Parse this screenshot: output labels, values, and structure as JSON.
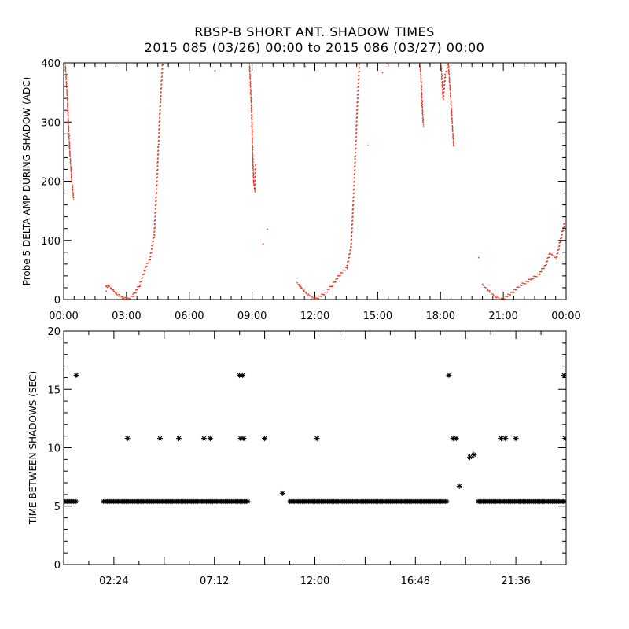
{
  "title": "RBSP-B SHORT ANT. SHADOW TIMES",
  "subtitle": "2015 085 (03/26) 00:00 to 2015 086 (03/27) 00:00",
  "colors": {
    "top_series": "#e8341c",
    "bottom_series": "#000000",
    "axes": "#000000"
  },
  "chart_data": [
    {
      "type": "scatter",
      "ylabel": "Probe 5 DELTA AMP DURING SHADOW (ADC)",
      "xlabel": "",
      "xlim": [
        0,
        24
      ],
      "ylim": [
        0,
        400
      ],
      "x_ticks": [
        "00:00",
        "03:00",
        "06:00",
        "09:00",
        "12:00",
        "15:00",
        "18:00",
        "21:00",
        "00:00"
      ],
      "y_ticks": [
        "0",
        "100",
        "200",
        "300",
        "400"
      ],
      "series": [
        {
          "color": "#e8341c",
          "marker": "dot",
          "segments": [
            {
              "x": [
                0.05,
                0.15,
                0.25,
                0.35,
                0.45
              ],
              "y": [
                400,
                340,
                260,
                205,
                170
              ]
            },
            {
              "x": [
                2.0,
                2.1,
                2.3,
                2.5,
                2.8,
                3.0
              ],
              "y": [
                22,
                25,
                18,
                10,
                4,
                2
              ]
            },
            {
              "x": [
                3.0,
                3.3,
                3.6,
                3.9,
                4.1,
                4.3,
                4.4,
                4.5,
                4.6,
                4.7
              ],
              "y": [
                2,
                8,
                25,
                55,
                70,
                110,
                180,
                260,
                340,
                400
              ]
            },
            {
              "x": [
                8.85,
                8.95,
                9.0,
                9.05,
                9.1,
                9.15
              ],
              "y": [
                400,
                320,
                250,
                200,
                185,
                230
              ]
            },
            {
              "x": [
                11.1,
                11.3,
                11.6,
                12.0
              ],
              "y": [
                30,
                22,
                10,
                2
              ]
            },
            {
              "x": [
                12.0,
                12.4,
                12.8,
                13.2,
                13.5,
                13.7,
                13.8,
                13.9,
                14.0,
                14.1
              ],
              "y": [
                2,
                10,
                25,
                45,
                55,
                90,
                160,
                240,
                330,
                400
              ]
            },
            {
              "x": [
                17.0,
                17.05,
                17.1,
                17.15
              ],
              "y": [
                400,
                370,
                330,
                295
              ]
            },
            {
              "x": [
                18.0,
                18.1,
                18.2,
                18.35,
                18.5,
                18.6
              ],
              "y": [
                400,
                340,
                380,
                400,
                320,
                260
              ]
            },
            {
              "x": [
                20.0,
                20.3,
                20.6,
                20.9
              ],
              "y": [
                25,
                15,
                6,
                1
              ]
            },
            {
              "x": [
                20.9,
                21.3,
                21.8,
                22.3,
                22.7,
                23.0,
                23.2,
                23.5,
                23.7,
                23.9
              ],
              "y": [
                1,
                10,
                25,
                35,
                45,
                60,
                80,
                70,
                100,
                130
              ]
            }
          ],
          "isolated_points": [
            {
              "x": 2.0,
              "y": 15
            },
            {
              "x": 7.2,
              "y": 388
            },
            {
              "x": 11.5,
              "y": 395
            },
            {
              "x": 14.5,
              "y": 262
            },
            {
              "x": 15.4,
              "y": 400
            },
            {
              "x": 19.8,
              "y": 72
            },
            {
              "x": 9.5,
              "y": 95
            },
            {
              "x": 9.7,
              "y": 120
            },
            {
              "x": 15.2,
              "y": 385
            }
          ]
        }
      ]
    },
    {
      "type": "scatter",
      "ylabel": "TIME BETWEEN SHADOWS (SEC)",
      "xlabel": "",
      "xlim": [
        0,
        24
      ],
      "ylim": [
        0,
        20
      ],
      "x_ticks": [
        "02:24",
        "07:12",
        "12:00",
        "16:48",
        "21:36"
      ],
      "y_ticks": [
        "0",
        "5",
        "10",
        "15",
        "20"
      ],
      "series": [
        {
          "color": "#000000",
          "marker": "asterisk",
          "baseline_segments": [
            {
              "x0": 0.05,
              "x1": 0.65,
              "y": 5.4
            },
            {
              "x0": 1.9,
              "x1": 8.8,
              "y": 5.4
            },
            {
              "x0": 10.8,
              "x1": 18.3,
              "y": 5.4
            },
            {
              "x0": 19.8,
              "x1": 23.95,
              "y": 5.4
            }
          ],
          "points": [
            {
              "x": 0.6,
              "y": 16.2
            },
            {
              "x": 3.05,
              "y": 10.8
            },
            {
              "x": 4.6,
              "y": 10.8
            },
            {
              "x": 5.5,
              "y": 10.8
            },
            {
              "x": 6.7,
              "y": 10.8
            },
            {
              "x": 7.0,
              "y": 10.8
            },
            {
              "x": 8.4,
              "y": 16.2
            },
            {
              "x": 8.55,
              "y": 16.2
            },
            {
              "x": 8.45,
              "y": 10.8
            },
            {
              "x": 8.6,
              "y": 10.8
            },
            {
              "x": 9.6,
              "y": 10.8
            },
            {
              "x": 10.45,
              "y": 6.1
            },
            {
              "x": 12.1,
              "y": 10.8
            },
            {
              "x": 18.4,
              "y": 16.2
            },
            {
              "x": 18.6,
              "y": 10.8
            },
            {
              "x": 18.75,
              "y": 10.8
            },
            {
              "x": 18.9,
              "y": 6.7
            },
            {
              "x": 19.4,
              "y": 9.2
            },
            {
              "x": 19.6,
              "y": 9.4
            },
            {
              "x": 20.9,
              "y": 10.8
            },
            {
              "x": 21.1,
              "y": 10.8
            },
            {
              "x": 21.6,
              "y": 10.8
            },
            {
              "x": 23.9,
              "y": 16.2
            },
            {
              "x": 23.95,
              "y": 10.8
            }
          ]
        }
      ]
    }
  ]
}
